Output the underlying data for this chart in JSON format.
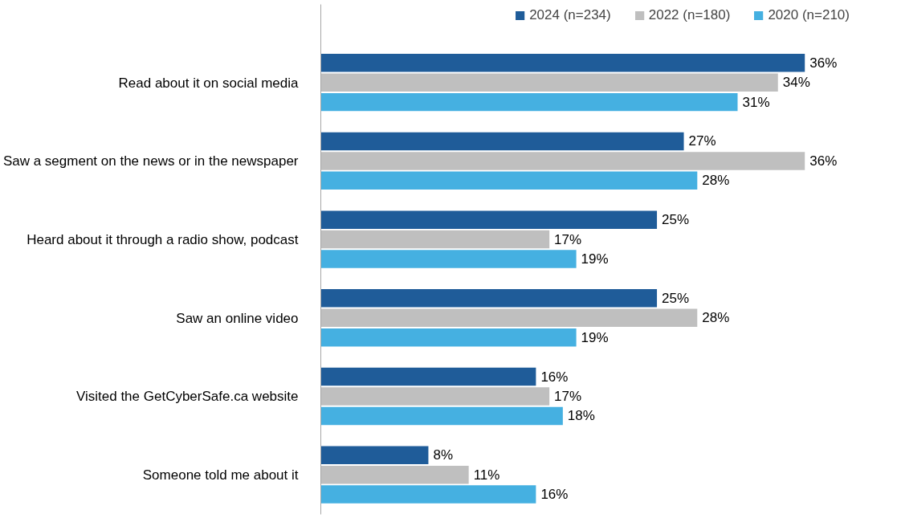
{
  "chart_data": {
    "type": "bar",
    "orientation": "horizontal",
    "categories": [
      "Read about it on social media",
      "Saw a segment on the news or in the newspaper",
      "Heard about it through a radio show, podcast",
      "Saw an online video",
      "Visited the GetCyberSafe.ca website",
      "Someone told me about it"
    ],
    "series": [
      {
        "name": "2024 (n=234)",
        "color": "#1f5c99",
        "values": [
          36,
          27,
          25,
          25,
          16,
          8
        ],
        "value_labels": [
          "36%",
          "27%",
          "25%",
          "25%",
          "16%",
          "8%"
        ]
      },
      {
        "name": "2022 (n=180)",
        "color": "#bfbfbf",
        "values": [
          34,
          36,
          17,
          28,
          17,
          11
        ],
        "value_labels": [
          "34%",
          "36%",
          "17%",
          "28%",
          "17%",
          "11%"
        ]
      },
      {
        "name": "2020 (n=210)",
        "color": "#45b0e1",
        "values": [
          31,
          28,
          19,
          19,
          18,
          16
        ],
        "value_labels": [
          "31%",
          "28%",
          "19%",
          "19%",
          "18%",
          "16%"
        ]
      }
    ],
    "legend": "top",
    "grid": false,
    "tick_labels": "y"
  }
}
